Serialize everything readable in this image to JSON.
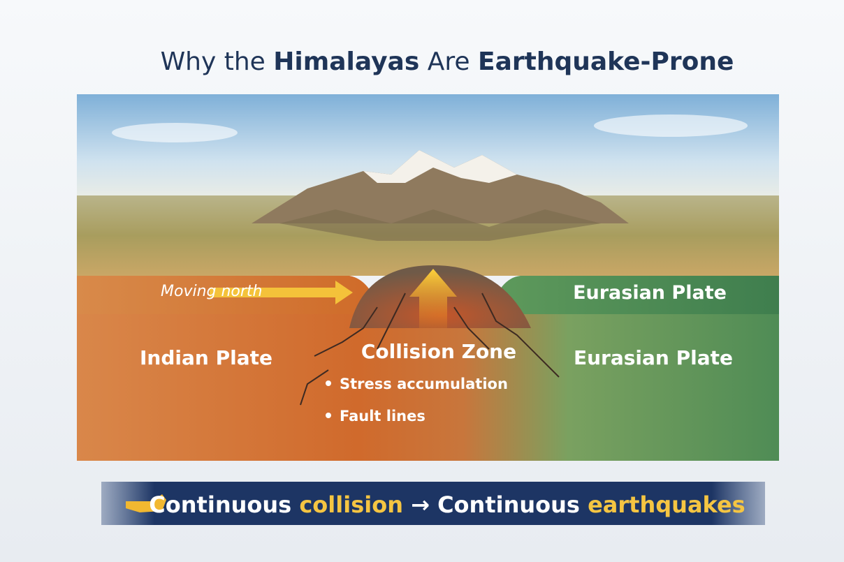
{
  "title": {
    "parts": [
      "Why the",
      "Himalayas",
      "Are",
      "Earthquake-Prone"
    ]
  },
  "labels": {
    "moving": "Moving north",
    "eurasian_top": "Eurasian Plate",
    "indian": "Indian Plate",
    "collision": "Collision Zone",
    "eurasian_bottom": "Eurasian Plate"
  },
  "bullets": [
    "Stress accumulation",
    "Fault lines"
  ],
  "banner": {
    "parts": [
      "Continuous",
      "collision",
      "Continuous",
      "earthquakes"
    ]
  }
}
